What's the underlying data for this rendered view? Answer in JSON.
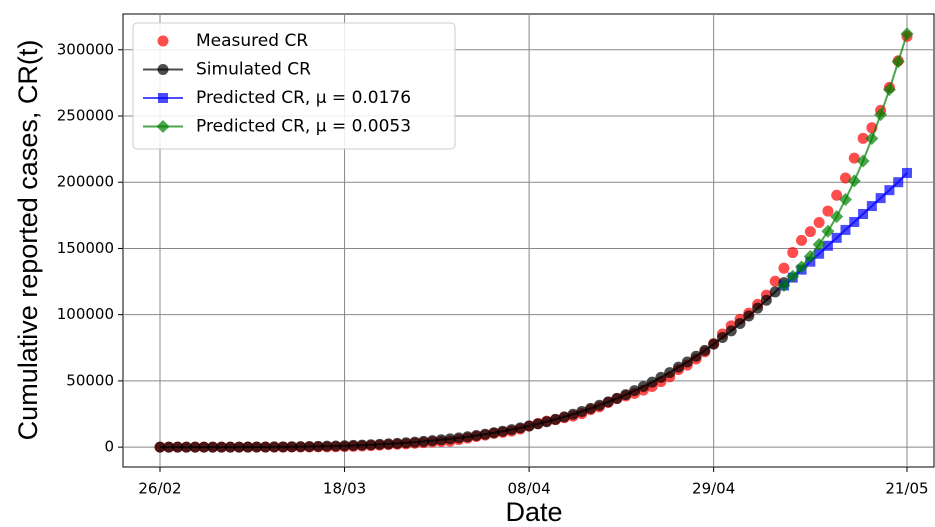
{
  "chart_data": {
    "type": "line",
    "xlabel": "Date",
    "ylabel": "Cumulative reported cases, CR(t)",
    "categories": [
      "26/02",
      null,
      null,
      null,
      null,
      null,
      null,
      null,
      null,
      null,
      null,
      null,
      null,
      null,
      null,
      null,
      null,
      null,
      null,
      null,
      null,
      "18/03",
      null,
      null,
      null,
      null,
      null,
      null,
      null,
      null,
      null,
      null,
      null,
      null,
      null,
      null,
      null,
      null,
      null,
      null,
      null,
      null,
      "08/04",
      null,
      null,
      null,
      null,
      null,
      null,
      null,
      null,
      null,
      null,
      null,
      null,
      null,
      null,
      null,
      null,
      null,
      null,
      null,
      null,
      "29/04",
      null,
      null,
      null,
      null,
      null,
      null,
      null,
      null,
      null,
      null,
      null,
      null,
      null,
      null,
      null,
      null,
      null,
      null,
      null,
      null,
      null,
      "21/05"
    ],
    "ylim": [
      -15000,
      327000
    ],
    "yticks": [
      0,
      50000,
      100000,
      150000,
      200000,
      250000,
      300000
    ],
    "grid": true,
    "legend": "upper left",
    "series": [
      {
        "name": "Measured CR",
        "color": "#ff0000",
        "marker": "circle",
        "line": false,
        "values": [
          1,
          1,
          1,
          2,
          2,
          2,
          2,
          3,
          8,
          13,
          19,
          25,
          25,
          34,
          52,
          77,
          98,
          121,
          200,
          234,
          291,
          428,
          621,
          904,
          1128,
          1546,
          1891,
          2201,
          2433,
          2915,
          3417,
          3903,
          4256,
          4579,
          5717,
          6836,
          8044,
          9056,
          10360,
          11130,
          12056,
          13717,
          15927,
          17857,
          19638,
          20727,
          22169,
          23430,
          25262,
          28320,
          30425,
          33682,
          36599,
          38654,
          40581,
          43079,
          45757,
          49492,
          52995,
          58509,
          61888,
          66501,
          71886,
          78162,
          85380,
          91589,
          96559,
          101147,
          107780,
          114715,
          125218,
          135106,
          146894,
          156061,
          162699,
          169594,
          178214,
          190137,
          203165,
          218223,
          233142,
          241080,
          254220,
          271628,
          291579,
          310087
        ]
      },
      {
        "name": "Simulated CR",
        "color": "#000000",
        "marker": "circle",
        "line": true,
        "values": [
          0,
          0,
          0,
          0,
          2,
          4,
          8,
          15,
          25,
          39,
          59,
          86,
          120,
          166,
          221,
          288,
          372,
          469,
          584,
          728,
          889,
          1075,
          1288,
          1526,
          1808,
          2121,
          2470,
          2860,
          3296,
          3773,
          4303,
          4898,
          5548,
          6261,
          7019,
          7860,
          8781,
          9762,
          10834,
          11985,
          13218,
          14581,
          16000,
          17540,
          19196,
          20979,
          22866,
          24819,
          26940,
          29244,
          31613,
          34180,
          36802,
          39627,
          42672,
          45770,
          49086,
          52645,
          56290,
          60368,
          64238,
          68617,
          73066,
          77760,
          82810,
          87765,
          93376,
          99040,
          104970,
          110900,
          117170,
          124160,
          null,
          null,
          null,
          null,
          null,
          null,
          null,
          null,
          null,
          null,
          null,
          null,
          null,
          null
        ]
      },
      {
        "name": "Predicted CR, μ = 0.0176",
        "color": "#0000ff",
        "marker": "square",
        "line": true,
        "values": [
          null,
          null,
          null,
          null,
          null,
          null,
          null,
          null,
          null,
          null,
          null,
          null,
          null,
          null,
          null,
          null,
          null,
          null,
          null,
          null,
          null,
          null,
          null,
          null,
          null,
          null,
          null,
          null,
          null,
          null,
          null,
          null,
          null,
          null,
          null,
          null,
          null,
          null,
          null,
          null,
          null,
          null,
          null,
          null,
          null,
          null,
          null,
          null,
          null,
          null,
          null,
          null,
          null,
          null,
          null,
          null,
          null,
          null,
          null,
          null,
          null,
          null,
          null,
          null,
          null,
          null,
          null,
          null,
          null,
          null,
          null,
          122000,
          128000,
          134000,
          140000,
          146000,
          152000,
          158000,
          164000,
          170000,
          176000,
          182000,
          188000,
          194000,
          200000,
          207000
        ]
      },
      {
        "name": "Predicted CR, μ = 0.0053",
        "color": "#008000",
        "marker": "diamond",
        "line": true,
        "values": [
          null,
          null,
          null,
          null,
          null,
          null,
          null,
          null,
          null,
          null,
          null,
          null,
          null,
          null,
          null,
          null,
          null,
          null,
          null,
          null,
          null,
          null,
          null,
          null,
          null,
          null,
          null,
          null,
          null,
          null,
          null,
          null,
          null,
          null,
          null,
          null,
          null,
          null,
          null,
          null,
          null,
          null,
          null,
          null,
          null,
          null,
          null,
          null,
          null,
          null,
          null,
          null,
          null,
          null,
          null,
          null,
          null,
          null,
          null,
          null,
          null,
          null,
          null,
          null,
          null,
          null,
          null,
          null,
          null,
          null,
          null,
          122000,
          129000,
          136000,
          144000,
          153000,
          163000,
          174000,
          187000,
          201000,
          216000,
          233000,
          251000,
          270000,
          291000,
          312000
        ]
      }
    ]
  }
}
